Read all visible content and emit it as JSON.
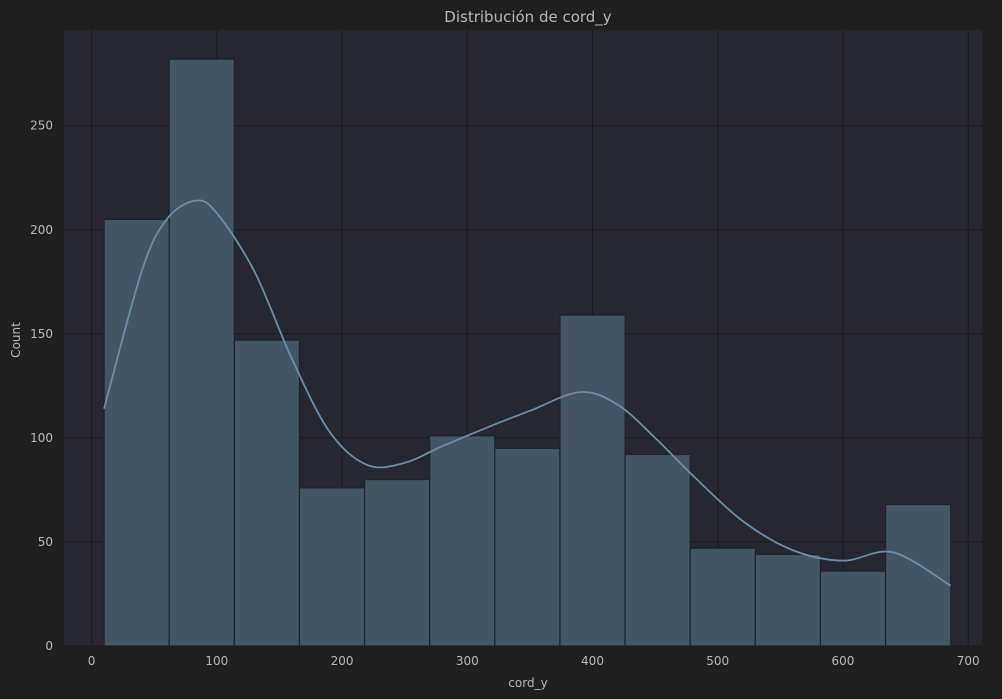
{
  "colors": {
    "figure_background": "#1f1f1f",
    "plot_background": "#262730",
    "grid": "#1a1a1a",
    "bar_fill": "#445563",
    "bar_edge": "#1e2328",
    "kde_line": "#6e8ea8",
    "text": "#b7b7b7"
  },
  "chart_data": {
    "type": "bar",
    "subtype": "histogram-with-kde",
    "title": "Distribución de cord_y",
    "xlabel": "cord_y",
    "ylabel": "Count",
    "xlim": [
      -22,
      711
    ],
    "ylim": [
      0,
      296
    ],
    "xticks": [
      0,
      100,
      200,
      300,
      400,
      500,
      600,
      700
    ],
    "yticks": [
      0,
      50,
      100,
      150,
      200,
      250
    ],
    "grid": true,
    "bin_edges": [
      10,
      62,
      114,
      166,
      218,
      270,
      322,
      374,
      426,
      478,
      530,
      582,
      634,
      686
    ],
    "counts": [
      205,
      282,
      147,
      76,
      80,
      101,
      95,
      159,
      92,
      47,
      44,
      36,
      68
    ],
    "kde": {
      "x": [
        10,
        40,
        60,
        83,
        100,
        130,
        160,
        190,
        220,
        250,
        280,
        320,
        350,
        390,
        420,
        450,
        480,
        520,
        560,
        600,
        640,
        686
      ],
      "y": [
        114,
        180,
        205,
        214,
        208,
        180,
        138,
        103,
        87,
        88,
        96,
        106,
        113,
        122,
        116,
        100,
        82,
        60,
        46,
        41,
        45,
        29
      ]
    }
  }
}
